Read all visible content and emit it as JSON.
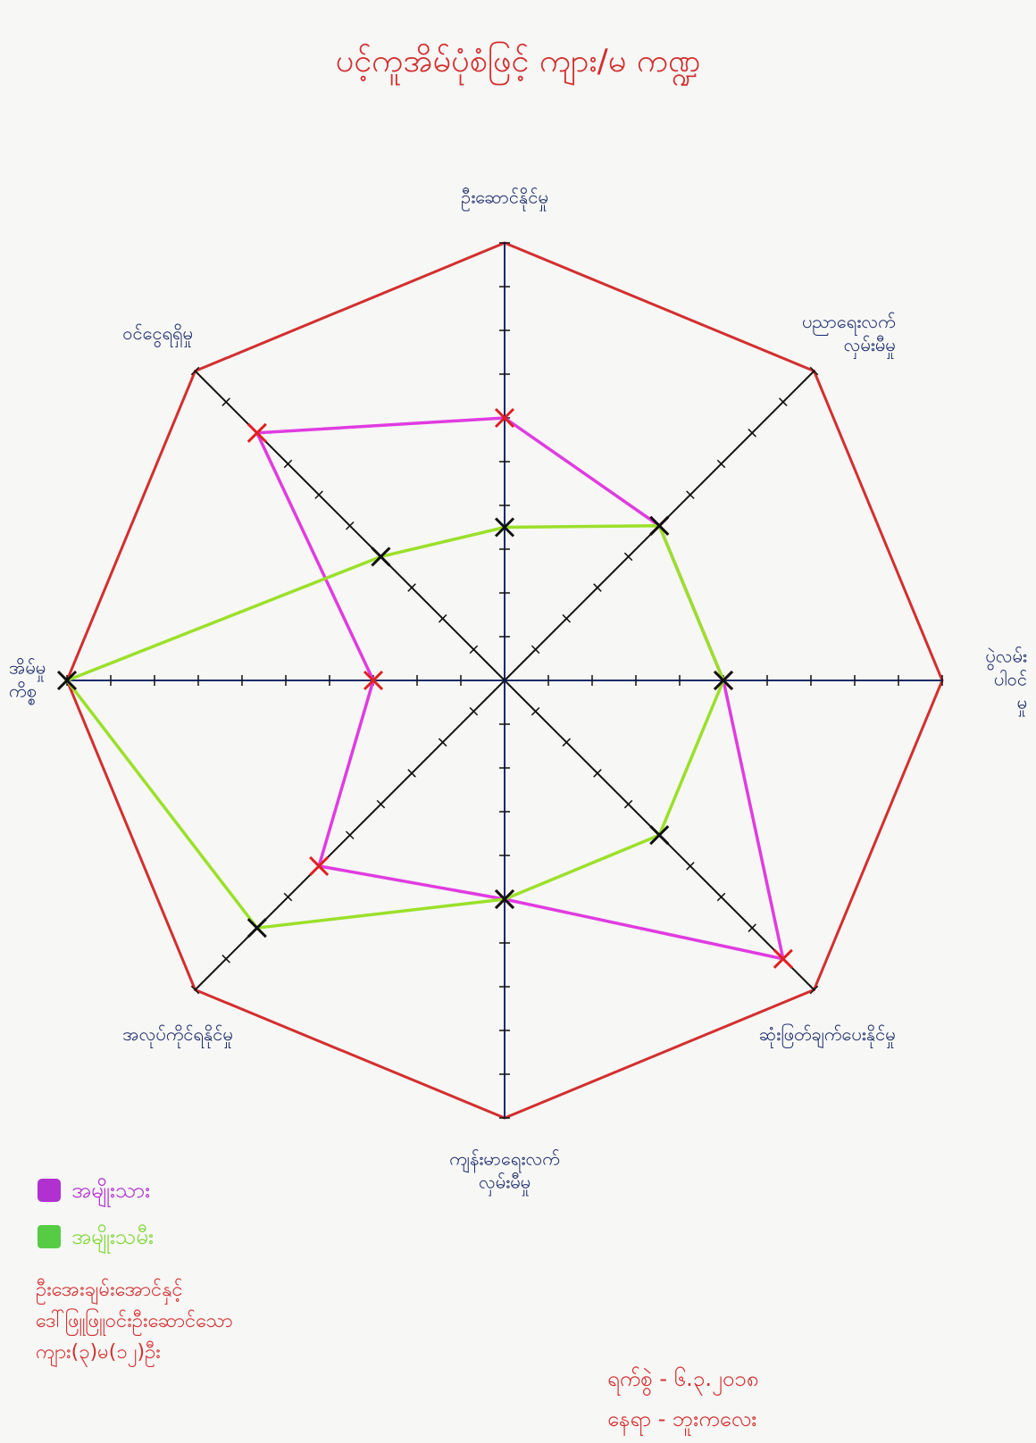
{
  "chart_data": {
    "type": "radar",
    "title": "ပင့်ကူအိမ်ပုံစံဖြင့် ကျား/မ ကဏ္ဍ",
    "axes": [
      [
        "ဦးဆောင်နိုင်မှု"
      ],
      [
        "ပညာရေးလက်",
        "လှမ်းမီမှု"
      ],
      [
        "ပွဲလမ်း",
        "ပါဝင်",
        "မှု"
      ],
      [
        "ဆုံးဖြတ်ချက်ပေးနိုင်မှု"
      ],
      [
        "ကျန်းမာရေးလက်",
        "လှမ်းမီမှု"
      ],
      [
        "အလုပ်ကိုင်ရနိုင်မှု"
      ],
      [
        "အိမ်မှု",
        "ကိစ္စ"
      ],
      [
        "ဝင်ငွေရရှိမှု"
      ]
    ],
    "series": [
      {
        "name": "အမျိုးသား",
        "color": "#e03ce0",
        "values": [
          6,
          5,
          5,
          9,
          5,
          6,
          3,
          8
        ]
      },
      {
        "name": "အမျိုးသမီး",
        "color": "#9be02a",
        "values": [
          3.5,
          5,
          5,
          5,
          5,
          8,
          10,
          4
        ]
      }
    ],
    "rlim": [
      0,
      10
    ],
    "rticks": [
      1,
      2,
      3,
      4,
      5,
      6,
      7,
      8,
      9,
      10
    ],
    "outline_color": "#d32f2f",
    "axis_color": "#1a2a6c"
  },
  "notes": [
    "ဦးအေးချမ်းအောင်နှင့်",
    "ဒေါ်ဖြူဖြူဝင်းဦးဆောင်သော",
    "ကျား(၃)မ(၁၂)ဦး"
  ],
  "date": "ရက်စွဲ - ၆.၃.၂၀၁၈",
  "place": "နေရာ - ဘူးကလေး"
}
